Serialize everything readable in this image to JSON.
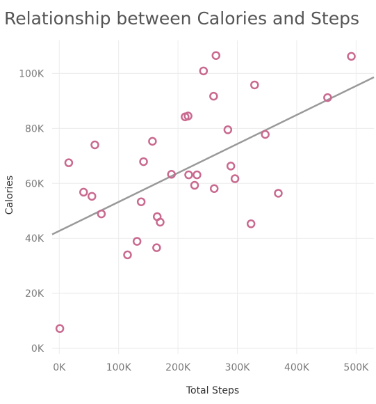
{
  "chart_data": {
    "type": "scatter",
    "title": "Relationship between Calories and Steps",
    "xlabel": "Total Steps",
    "ylabel": "Calories",
    "xlim": [
      -12000,
      530000
    ],
    "ylim": [
      -2000,
      112000
    ],
    "x_ticks": [
      {
        "value": 0,
        "label": "0K"
      },
      {
        "value": 100000,
        "label": "100K"
      },
      {
        "value": 200000,
        "label": "200K"
      },
      {
        "value": 300000,
        "label": "300K"
      },
      {
        "value": 400000,
        "label": "400K"
      },
      {
        "value": 500000,
        "label": "500K"
      }
    ],
    "y_ticks": [
      {
        "value": 0,
        "label": "0K"
      },
      {
        "value": 20000,
        "label": "20K"
      },
      {
        "value": 40000,
        "label": "40K"
      },
      {
        "value": 60000,
        "label": "60K"
      },
      {
        "value": 80000,
        "label": "80K"
      },
      {
        "value": 100000,
        "label": "100K"
      }
    ],
    "grid": true,
    "point_color": "#c9698f",
    "trend_color": "#999999",
    "trend_line": {
      "intercept": 42700,
      "slope": 0.1055
    },
    "points": [
      {
        "x": 1000,
        "y": 7200
      },
      {
        "x": 16000,
        "y": 67500
      },
      {
        "x": 41000,
        "y": 56800
      },
      {
        "x": 55000,
        "y": 55300
      },
      {
        "x": 60000,
        "y": 74000
      },
      {
        "x": 71000,
        "y": 48900
      },
      {
        "x": 115000,
        "y": 34000
      },
      {
        "x": 131000,
        "y": 38900
      },
      {
        "x": 138000,
        "y": 53300
      },
      {
        "x": 142000,
        "y": 67900
      },
      {
        "x": 157000,
        "y": 75300
      },
      {
        "x": 164000,
        "y": 36600
      },
      {
        "x": 165000,
        "y": 47900
      },
      {
        "x": 170000,
        "y": 45900
      },
      {
        "x": 189000,
        "y": 63300
      },
      {
        "x": 212000,
        "y": 84200
      },
      {
        "x": 217000,
        "y": 84500
      },
      {
        "x": 218000,
        "y": 63100
      },
      {
        "x": 228000,
        "y": 59300
      },
      {
        "x": 232000,
        "y": 63100
      },
      {
        "x": 243000,
        "y": 100900
      },
      {
        "x": 260000,
        "y": 91700
      },
      {
        "x": 261000,
        "y": 58100
      },
      {
        "x": 264000,
        "y": 106500
      },
      {
        "x": 284000,
        "y": 79500
      },
      {
        "x": 289000,
        "y": 66300
      },
      {
        "x": 296000,
        "y": 61700
      },
      {
        "x": 323000,
        "y": 45300
      },
      {
        "x": 329000,
        "y": 95800
      },
      {
        "x": 347000,
        "y": 77800
      },
      {
        "x": 369000,
        "y": 56400
      },
      {
        "x": 452000,
        "y": 91200
      },
      {
        "x": 492000,
        "y": 106200
      }
    ]
  }
}
